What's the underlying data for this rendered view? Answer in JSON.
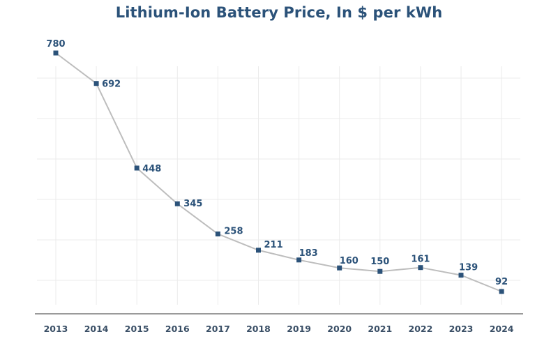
{
  "chart_data": {
    "type": "line",
    "title": "Lithium-Ion Battery Price, In $ per kWh",
    "xlabel": "",
    "ylabel": "",
    "categories": [
      "2013",
      "2014",
      "2015",
      "2016",
      "2017",
      "2018",
      "2019",
      "2020",
      "2021",
      "2022",
      "2023",
      "2024"
    ],
    "series": [
      {
        "name": "Price ($/kWh)",
        "values": [
          780,
          692,
          448,
          345,
          258,
          211,
          183,
          160,
          150,
          161,
          139,
          92
        ],
        "color": "#bdbdbd",
        "marker_color": "#2b5279"
      }
    ],
    "data_labels": [
      "780",
      "692",
      "448",
      "345",
      "258",
      "211",
      "183",
      "160",
      "150",
      "161",
      "139",
      "92"
    ],
    "grid": true,
    "legend": "none",
    "y_tick_labels_visible": false
  }
}
